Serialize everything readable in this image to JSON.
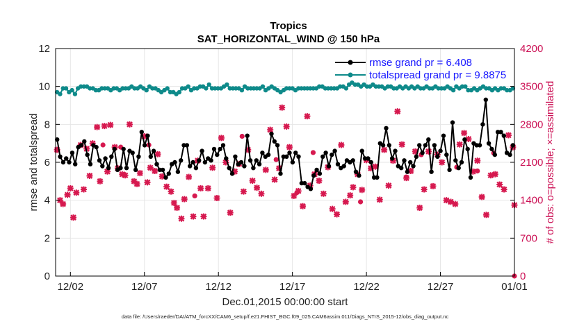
{
  "chart_data": {
    "type": "line",
    "title": "Tropics",
    "subtitle": "SAT_HORIZONTAL_WIND @ 150 hPa",
    "xlabel": "Dec.01,2015 00:00:00 start",
    "ylabel": "rmse and totalspread",
    "ylabel_right": "# of obs: o=possible; ×=assimilated",
    "xlim": [
      0,
      31
    ],
    "ylim": [
      0,
      12
    ],
    "ylim_right": [
      0,
      4200
    ],
    "x_ticks": [
      {
        "x": 1,
        "label": "12/02"
      },
      {
        "x": 6,
        "label": "12/07"
      },
      {
        "x": 11,
        "label": "12/12"
      },
      {
        "x": 16,
        "label": "12/17"
      },
      {
        "x": 21,
        "label": "12/22"
      },
      {
        "x": 26,
        "label": "12/27"
      },
      {
        "x": 31,
        "label": "01/01"
      }
    ],
    "y_ticks": [
      0,
      2,
      4,
      6,
      8,
      10,
      12
    ],
    "y_ticks_right": [
      0,
      700,
      1400,
      2100,
      2800,
      3500,
      4200
    ],
    "footnote": "data file: /Users/raeder/DAI/ATM_forcXX/CAM6_setup/f.e21.FHIST_BGC.f09_025.CAM6assim.011/Diags_NTrS_2015-12/obs_diag_output.nc",
    "legend": {
      "position": "top-right",
      "entries": [
        "rmse grand pr = 6.408",
        "totalspread grand pr = 9.8875"
      ]
    },
    "colors": {
      "rmse": "#000000",
      "spread": "#0e8a8a",
      "obs": "#d6194f",
      "right_axis": "#cc1155",
      "legend_text": "#1a1aff",
      "grid": "#e6e6e6"
    },
    "series": [
      {
        "name": "rmse",
        "values": [
          7.2,
          6.3,
          6.0,
          6.2,
          6.0,
          6.5,
          5.9,
          6.8,
          6.9,
          7.1,
          6.4,
          5.9,
          6.9,
          6.8,
          6.1,
          5.8,
          6.2,
          5.7,
          6.3,
          6.7,
          5.6,
          5.7,
          6.7,
          5.7,
          6.6,
          6.5,
          5.6,
          6.3,
          7.6,
          6.9,
          7.4,
          6.3,
          6.6,
          5.9,
          5.6,
          5.6,
          5.2,
          5.4,
          5.9,
          6.0,
          5.5,
          6.1,
          6.9,
          6.9,
          5.8,
          6.0,
          5.7,
          6.1,
          6.6,
          6.0,
          6.2,
          6.1,
          6.7,
          6.4,
          6.7,
          6.9,
          6.2,
          5.7,
          5.4,
          6.3,
          5.9,
          6.0,
          5.8,
          7.4,
          6.1,
          5.7,
          6.1,
          5.9,
          6.5,
          6.3,
          6.4,
          7.5,
          7.1,
          6.9,
          5.4,
          6.3,
          6.3,
          6.5,
          6.0,
          6.5,
          6.3,
          4.9,
          4.9,
          4.7,
          4.6,
          5.3,
          5.6,
          5.4,
          6.3,
          6.5,
          5.8,
          6.4,
          6.6,
          5.9,
          5.7,
          5.8,
          6.1,
          6.0,
          6.1,
          5.5,
          5.3,
          6.6,
          6.2,
          6.2,
          6.0,
          5.2,
          5.2,
          7.0,
          6.9,
          7.8,
          6.9,
          6.2,
          6.6,
          5.8,
          5.7,
          6.1,
          5.5,
          6.0,
          5.8,
          6.3,
          6.9,
          6.5,
          6.9,
          7.2,
          5.5,
          6.9,
          6.3,
          6.6,
          7.4,
          6.4,
          5.6,
          8.1,
          6.1,
          5.7,
          6.0,
          7.2,
          6.7,
          5.2,
          7.0,
          6.9,
          6.9,
          8.0,
          9.3,
          7.0,
          6.7,
          6.4,
          7.6,
          7.6,
          7.4,
          6.5,
          6.4,
          6.9
        ]
      },
      {
        "name": "totalspread",
        "values": [
          9.7,
          9.6,
          9.9,
          9.9,
          9.7,
          9.8,
          9.6,
          9.9,
          10.0,
          10.0,
          10.0,
          9.9,
          9.9,
          9.8,
          9.8,
          9.9,
          9.9,
          9.9,
          9.8,
          9.9,
          9.9,
          9.8,
          9.9,
          9.9,
          9.9,
          10.0,
          9.9,
          9.9,
          10.0,
          9.9,
          9.8,
          10.0,
          9.9,
          9.9,
          9.8,
          9.7,
          9.8,
          9.9,
          9.7,
          9.7,
          9.6,
          9.7,
          9.9,
          9.9,
          10.0,
          9.8,
          9.9,
          9.9,
          10.0,
          10.0,
          9.9,
          10.1,
          9.9,
          9.9,
          9.9,
          9.9,
          10.0,
          10.1,
          9.9,
          9.9,
          9.9,
          9.9,
          9.8,
          10.0,
          9.9,
          9.9,
          9.9,
          9.9,
          9.9,
          10.0,
          9.8,
          9.9,
          10.0,
          9.9,
          9.8,
          9.7,
          9.8,
          9.9,
          9.9,
          9.9,
          9.8,
          9.9,
          9.9,
          9.9,
          9.9,
          9.9,
          9.9,
          9.9,
          10.0,
          10.0,
          9.9,
          9.9,
          9.9,
          9.9,
          9.9,
          10.0,
          10.0,
          9.9,
          10.1,
          10.2,
          10.1,
          10.1,
          10.0,
          10.1,
          10.0,
          10.0,
          10.1,
          10.0,
          10.0,
          10.0,
          9.9,
          10.0,
          10.0,
          9.9,
          9.9,
          10.0,
          9.9,
          10.0,
          9.9,
          10.0,
          9.9,
          10.0,
          9.9,
          9.9,
          10.0,
          9.9,
          9.9,
          10.0,
          9.9,
          9.9,
          9.9,
          10.0,
          9.9,
          9.8,
          10.0,
          9.9,
          10.0,
          10.0,
          9.8,
          9.8,
          9.9,
          9.8,
          9.9,
          10.0,
          9.9,
          9.9,
          9.8,
          9.9,
          9.8,
          9.9,
          9.9,
          9.8,
          9.8,
          9.9
        ]
      },
      {
        "name": "obs_assimilated",
        "x": [
          0.1,
          0.3,
          0.5,
          0.8,
          1.0,
          1.2,
          1.4,
          1.7,
          1.9,
          2.1,
          2.3,
          2.5,
          2.8,
          3.0,
          3.3,
          3.5,
          3.7,
          4.0,
          4.2,
          4.5,
          4.7,
          5.0,
          5.3,
          5.5,
          5.7,
          6.0,
          6.2,
          6.4,
          6.7,
          6.9,
          7.2,
          7.5,
          7.8,
          8.0,
          8.2,
          8.5,
          8.7,
          9.0,
          9.3,
          9.6,
          9.8,
          10.0,
          10.3,
          10.6,
          10.9,
          11.2,
          11.5,
          11.8,
          12.1,
          12.4,
          12.7,
          13.0,
          13.3,
          13.6,
          13.9,
          14.2,
          14.5,
          14.8,
          15.1,
          15.3,
          15.6,
          15.8,
          16.1,
          16.4,
          16.7,
          17.0,
          17.2,
          17.5,
          17.8,
          18.1,
          18.4,
          18.7,
          19.0,
          19.3,
          19.6,
          19.9,
          20.1,
          20.4,
          20.7,
          21.0,
          21.3,
          21.6,
          21.9,
          22.2,
          22.5,
          22.8,
          23.1,
          23.4,
          23.7,
          24.0,
          24.3,
          24.6,
          24.9,
          25.2,
          25.5,
          25.8,
          26.1,
          26.4,
          26.7,
          27.0,
          27.3,
          27.6,
          27.9,
          28.2,
          28.5,
          28.8,
          29.1,
          29.4,
          29.7,
          30.0,
          30.3,
          30.6,
          30.9,
          31.0
        ],
        "values": [
          2330,
          1400,
          1330,
          1500,
          1620,
          1080,
          1540,
          2420,
          1600,
          2350,
          1850,
          2450,
          2750,
          1750,
          2770,
          1930,
          2790,
          2380,
          1990,
          1880,
          1860,
          2800,
          1750,
          1700,
          1900,
          2580,
          1730,
          2000,
          1940,
          2250,
          1840,
          1650,
          1560,
          1350,
          1260,
          1060,
          1420,
          1830,
          1100,
          2130,
          1620,
          1100,
          1620,
          2000,
          1440,
          2550,
          2100,
          1170,
          1930,
          2070,
          1560,
          2330,
          1760,
          1630,
          1520,
          1960,
          2700,
          1780,
          1990,
          3110,
          2760,
          2380,
          1480,
          1570,
          1290,
          2950,
          1670,
          1880,
          1760,
          1520,
          2010,
          1240,
          1140,
          2420,
          1370,
          1490,
          1640,
          1880,
          1590,
          2140,
          1990,
          2020,
          1410,
          2330,
          1670,
          2130,
          3040,
          2430,
          1810,
          1940,
          2300,
          1260,
          1600,
          2300,
          1660,
          2240,
          2100,
          1400,
          1370,
          1330,
          2430,
          2640,
          2530,
          1930,
          2130,
          1460,
          1130,
          1860,
          1880,
          1690,
          1600,
          2600,
          2380,
          1310
        ]
      },
      {
        "name": "obs_possible",
        "x": [
          0.1,
          3.2,
          4.4,
          6.3,
          9.4,
          12.6,
          14.9,
          16.3,
          17.4,
          20.6,
          23.7,
          24.7,
          27.1,
          28.5,
          29.6,
          31.0
        ],
        "values": [
          2330,
          2420,
          2380,
          2420,
          1480,
          2580,
          2150,
          1540,
          2280,
          1370,
          1830,
          2240,
          2010,
          1940,
          2270,
          0
        ]
      }
    ]
  }
}
